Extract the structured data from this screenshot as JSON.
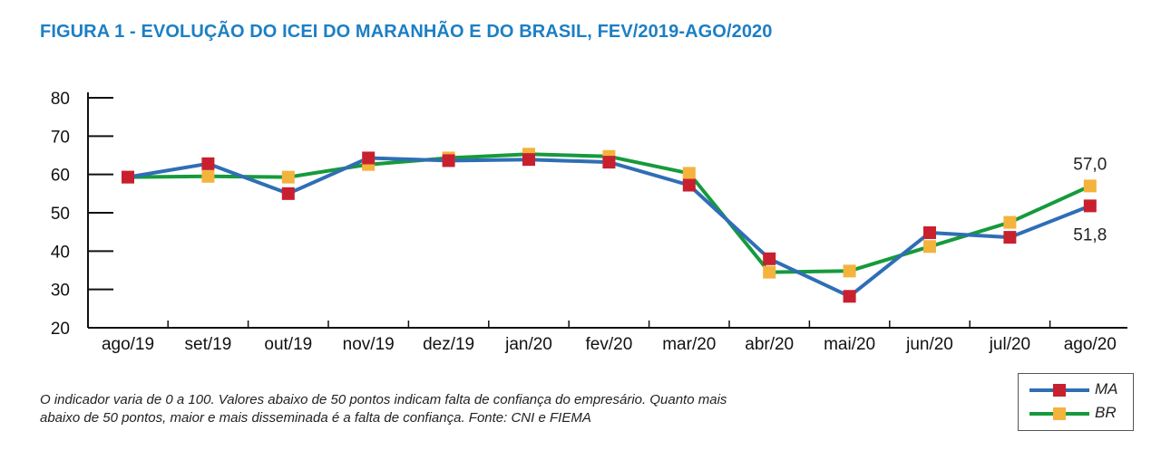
{
  "title": "FIGURA 1 - EVOLUÇÃO DO ICEI DO MARANHÃO E DO BRASIL, FEV/2019-AGO/2020",
  "note_line1": "O indicador varia de 0 a 100. Valores abaixo de 50 pontos indicam falta de confiança do empresário. Quanto mais",
  "note_line2": "abaixo de 50 pontos, maior e mais disseminada é a falta de confiança. Fonte: CNI e FIEMA",
  "colors": {
    "title": "#1c7fc4",
    "ma_line": "#2f6eb5",
    "ma_marker": "#c8202f",
    "br_line": "#169a3c",
    "br_marker": "#f3b33d"
  },
  "legend": {
    "items": [
      {
        "label": "MA",
        "line_color": "#2f6eb5",
        "marker_color": "#c8202f"
      },
      {
        "label": "BR",
        "line_color": "#169a3c",
        "marker_color": "#f3b33d"
      }
    ]
  },
  "chart_data": {
    "type": "line",
    "title": "FIGURA 1 - EVOLUÇÃO DO ICEI DO MARANHÃO E DO BRASIL, FEV/2019-AGO/2020",
    "categories": [
      "ago/19",
      "set/19",
      "out/19",
      "nov/19",
      "dez/19",
      "jan/20",
      "fev/20",
      "mar/20",
      "abr/20",
      "mai/20",
      "jun/20",
      "jul/20",
      "ago/20"
    ],
    "ylim": [
      20,
      80
    ],
    "yticks": [
      20,
      30,
      40,
      50,
      60,
      70,
      80
    ],
    "grid": false,
    "legend_position": "bottom-right",
    "series": [
      {
        "name": "MA",
        "color": "#2f6eb5",
        "marker_color": "#c8202f",
        "values": [
          59.3,
          62.8,
          55.0,
          64.3,
          63.6,
          63.9,
          63.2,
          57.2,
          38.0,
          28.2,
          44.8,
          43.6,
          51.8
        ]
      },
      {
        "name": "BR",
        "color": "#169a3c",
        "marker_color": "#f3b33d",
        "values": [
          59.3,
          59.5,
          59.3,
          62.6,
          64.3,
          65.3,
          64.7,
          60.3,
          34.5,
          34.8,
          41.2,
          47.5,
          57.0
        ]
      }
    ],
    "annotations": [
      {
        "text": "57,0",
        "series": "BR",
        "category": "ago/20",
        "placement": "above"
      },
      {
        "text": "51,8",
        "series": "MA",
        "category": "ago/20",
        "placement": "below"
      }
    ]
  }
}
